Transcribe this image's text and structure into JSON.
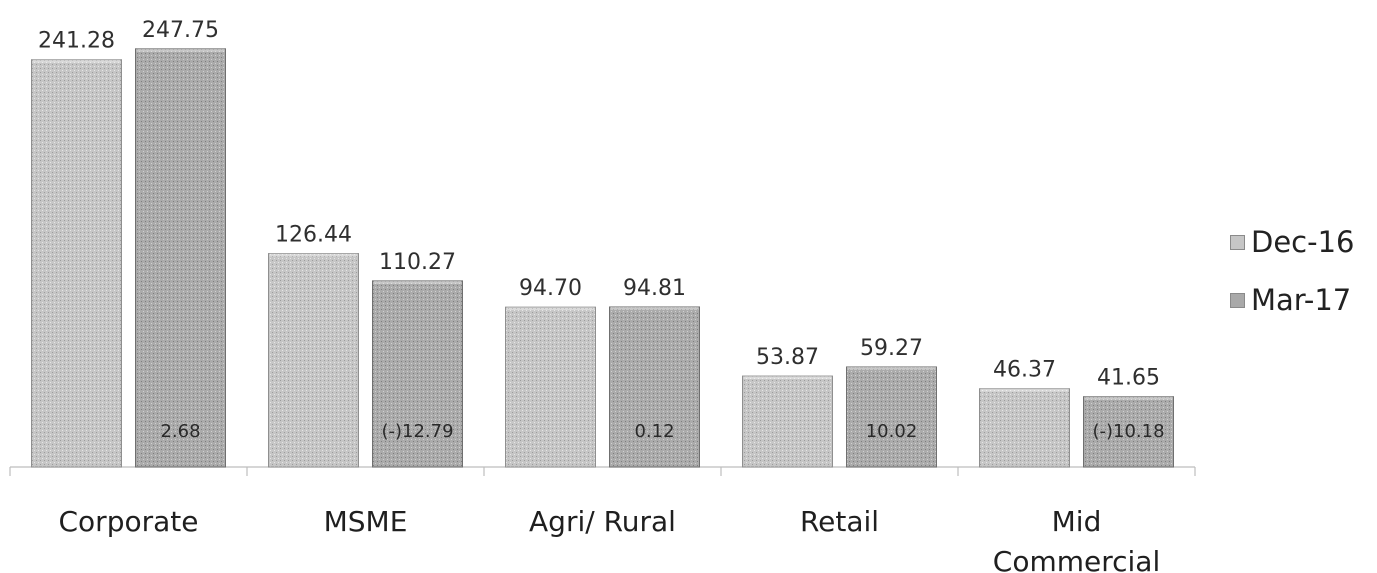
{
  "chart_data": {
    "type": "bar",
    "categories": [
      "Corporate",
      "MSME",
      "Agri/ Rural",
      "Retail",
      "Mid Commercial"
    ],
    "category_lines": [
      [
        "Corporate"
      ],
      [
        "MSME"
      ],
      [
        "Agri/ Rural"
      ],
      [
        "Retail"
      ],
      [
        "Mid",
        "Commercial"
      ]
    ],
    "series": [
      {
        "name": "Dec-16",
        "values": [
          241.28,
          126.44,
          94.7,
          53.87,
          46.37
        ],
        "labels": [
          "241.28",
          "126.44",
          "94.70",
          "53.87",
          "46.37"
        ],
        "color": "#c4c4c4"
      },
      {
        "name": "Mar-17",
        "values": [
          247.75,
          110.27,
          94.81,
          59.27,
          41.65
        ],
        "labels": [
          "247.75",
          "110.27",
          "94.81",
          "59.27",
          "41.65"
        ],
        "color": "#a9a9a9"
      }
    ],
    "inner_labels": [
      "2.68",
      "(-)12.79",
      "0.12",
      "10.02",
      "(-)10.18"
    ],
    "ylim": [
      0,
      250
    ],
    "grid": false,
    "legend_position": "right"
  }
}
